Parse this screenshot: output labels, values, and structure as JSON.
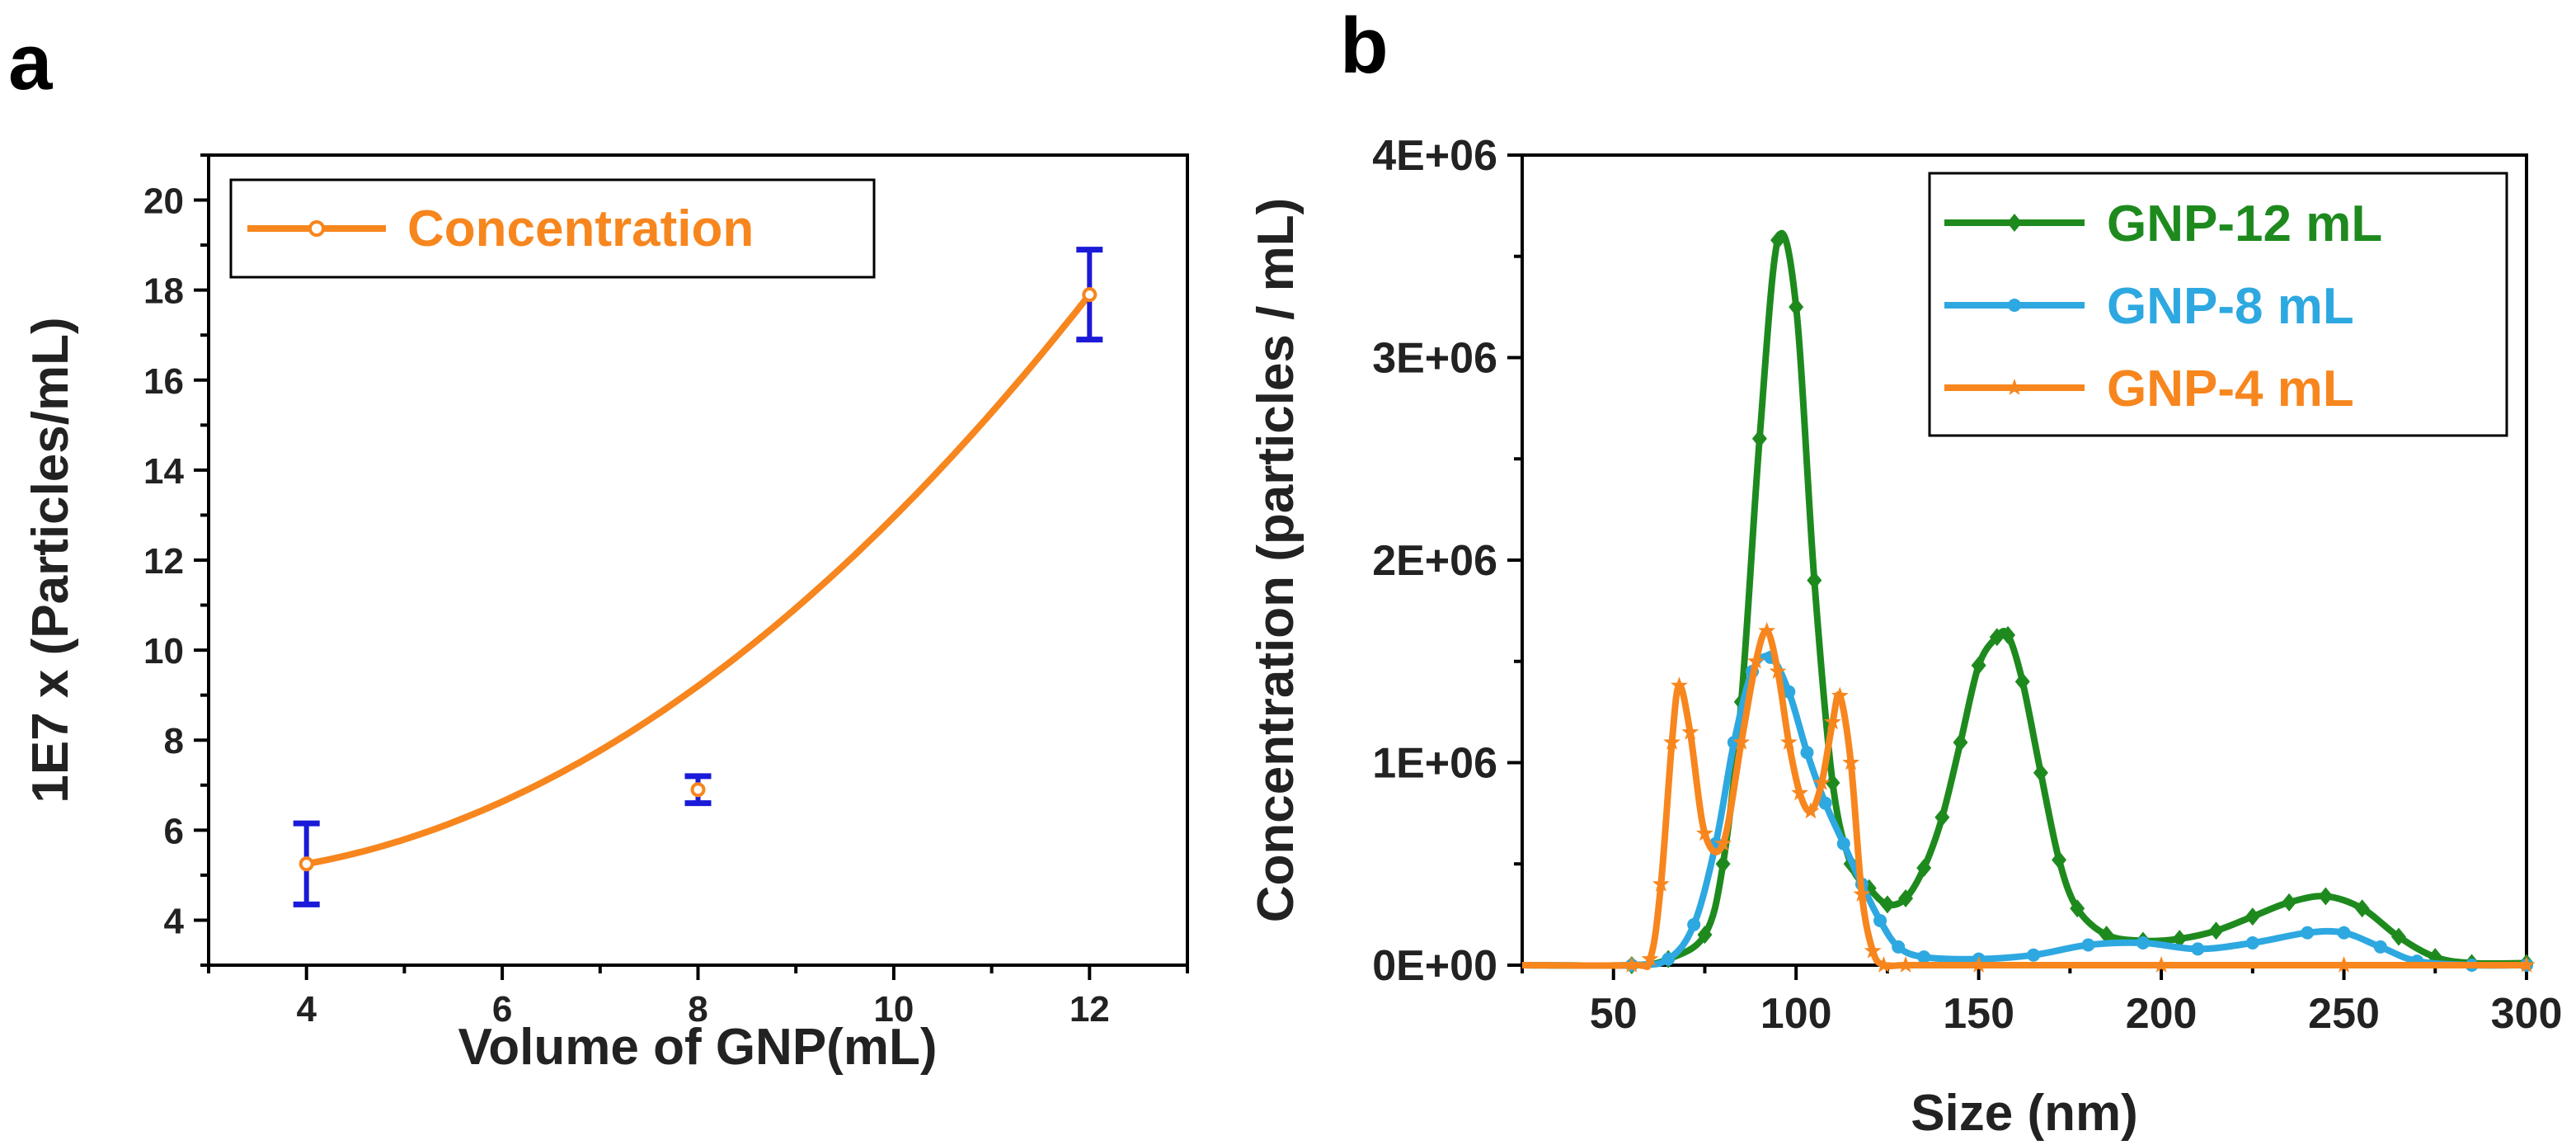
{
  "chart_data": [
    {
      "panel": "a",
      "type": "scatter",
      "xlabel": "Volume of GNP(mL)",
      "ylabel": "1E7 x (Particles/mL)",
      "xlim": [
        3,
        13
      ],
      "ylim": [
        3,
        21
      ],
      "xticks": [
        "4",
        "6",
        "8",
        "10",
        "12"
      ],
      "yticks": [
        "4",
        "6",
        "8",
        "10",
        "12",
        "14",
        "16",
        "18",
        "20"
      ],
      "legend": [
        "Concentration"
      ],
      "series": [
        {
          "name": "Concentration",
          "x": [
            4,
            8,
            12
          ],
          "y": [
            5.25,
            6.9,
            17.9
          ],
          "err": [
            0.9,
            0.3,
            1.0
          ],
          "color": "#f7861e",
          "error_color": "#1a1ad8",
          "fit": "smooth curve"
        }
      ]
    },
    {
      "panel": "b",
      "type": "line",
      "xlabel": "Size (nm)",
      "ylabel": "Concentration (particles / mL)",
      "xlim": [
        25,
        300
      ],
      "ylim": [
        0,
        4000000
      ],
      "xticks": [
        "50",
        "100",
        "150",
        "200",
        "250",
        "300"
      ],
      "yticks": [
        "0E+00",
        "1E+06",
        "2E+06",
        "3E+06",
        "4E+06"
      ],
      "legend": [
        "GNP-12 mL",
        "GNP-8 mL",
        "GNP-4 mL"
      ],
      "series": [
        {
          "name": "GNP-12 mL",
          "color": "#1e8a1e",
          "marker": "diamond",
          "x": [
            25,
            55,
            65,
            75,
            80,
            85,
            90,
            95,
            100,
            105,
            110,
            115,
            120,
            125,
            130,
            135,
            140,
            145,
            150,
            155,
            158,
            162,
            167,
            172,
            177,
            185,
            195,
            205,
            215,
            225,
            235,
            245,
            255,
            265,
            275,
            285,
            300
          ],
          "y": [
            0,
            0,
            30000,
            150000,
            500000,
            1300000,
            2600000,
            3580000,
            3250000,
            1900000,
            900000,
            500000,
            380000,
            300000,
            330000,
            480000,
            730000,
            1100000,
            1480000,
            1620000,
            1630000,
            1400000,
            950000,
            520000,
            280000,
            150000,
            120000,
            130000,
            170000,
            240000,
            310000,
            340000,
            280000,
            140000,
            40000,
            10000,
            10000
          ]
        },
        {
          "name": "GNP-8 mL",
          "color": "#2ea8e0",
          "marker": "circle",
          "x": [
            25,
            55,
            65,
            72,
            78,
            83,
            88,
            93,
            98,
            103,
            108,
            113,
            118,
            123,
            128,
            135,
            150,
            165,
            180,
            195,
            210,
            225,
            240,
            250,
            260,
            270,
            285,
            300
          ],
          "y": [
            0,
            0,
            30000,
            200000,
            600000,
            1100000,
            1450000,
            1520000,
            1350000,
            1050000,
            800000,
            600000,
            400000,
            220000,
            90000,
            40000,
            30000,
            50000,
            100000,
            110000,
            80000,
            110000,
            160000,
            160000,
            90000,
            20000,
            0,
            0
          ]
        },
        {
          "name": "GNP-4 mL",
          "color": "#f7861e",
          "marker": "star",
          "x": [
            25,
            55,
            60,
            63,
            66,
            68,
            71,
            75,
            80,
            85,
            89,
            92,
            95,
            98,
            101,
            104,
            107,
            110,
            112,
            115,
            118,
            121,
            124,
            130,
            150,
            200,
            250,
            300
          ],
          "y": [
            0,
            0,
            30000,
            400000,
            1100000,
            1380000,
            1150000,
            650000,
            600000,
            1100000,
            1500000,
            1650000,
            1450000,
            1100000,
            850000,
            760000,
            900000,
            1200000,
            1330000,
            1000000,
            350000,
            70000,
            0,
            0,
            0,
            0,
            0,
            0
          ]
        }
      ]
    }
  ]
}
